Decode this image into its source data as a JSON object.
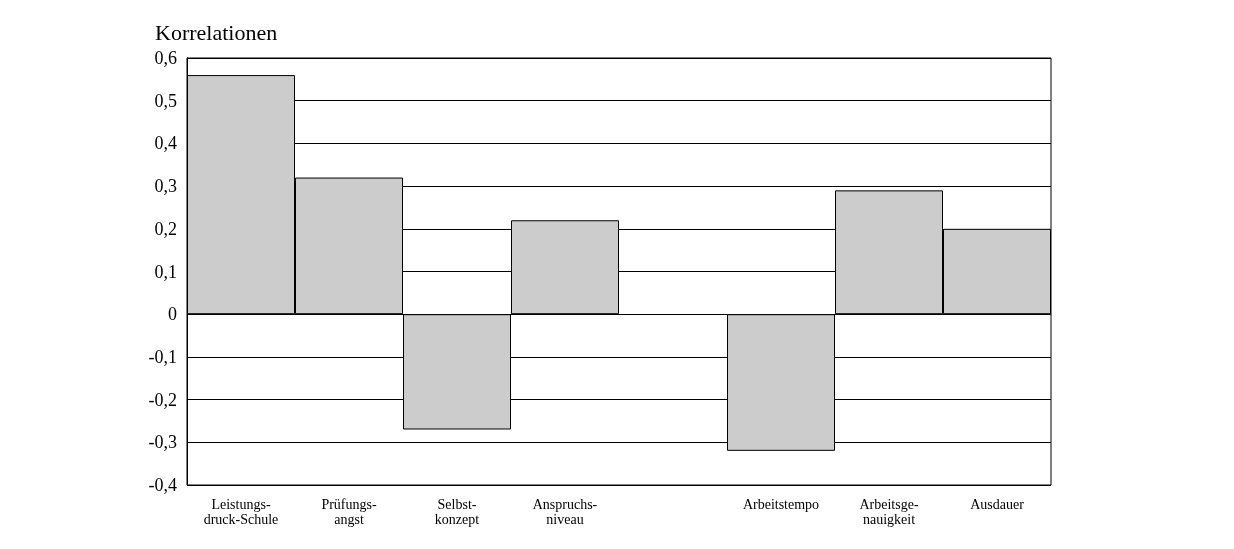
{
  "chart_data": {
    "type": "bar",
    "title": "Korrelationen",
    "categories": [
      "Leistungs-\ndruck-Schule",
      "Prüfungs-\nangst",
      "Selbst-\nkonzept",
      "Anspruchs-\nniveau",
      null,
      "Arbeitstempo",
      "Arbeitsge-\nnauigkeit",
      "Ausdauer"
    ],
    "values": [
      0.56,
      0.32,
      -0.27,
      0.22,
      null,
      -0.32,
      0.29,
      0.2
    ],
    "color": "#cccccc",
    "ylim": [
      -0.4,
      0.6
    ],
    "yticks": [
      {
        "value": -0.4,
        "label": "-0,4"
      },
      {
        "value": -0.3,
        "label": "-0,3"
      },
      {
        "value": -0.2,
        "label": "-0,2"
      },
      {
        "value": -0.1,
        "label": "-0,1"
      },
      0,
      {
        "value": 0.1,
        "label": "0,1"
      },
      {
        "value": 0.2,
        "label": "0,2"
      },
      {
        "value": 0.3,
        "label": "0,3"
      },
      {
        "value": 0.4,
        "label": "0,4"
      },
      {
        "value": 0.5,
        "label": "0,5"
      },
      {
        "value": 0.6,
        "label": "0,6"
      }
    ],
    "grid": "y"
  }
}
